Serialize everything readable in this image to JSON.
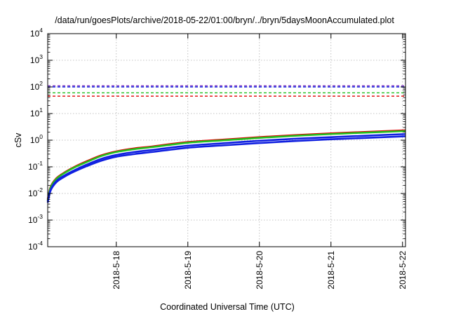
{
  "chart_data": {
    "type": "line",
    "title": "/data/run/goesPlots/archive/2018-05-22/01:00/bryn/../bryn/5daysMoonAccumulated.plot",
    "xlabel": "Coordinated Universal Time (UTC)",
    "ylabel": "cSv",
    "y_scale": "log",
    "ylim": [
      0.0001,
      10000
    ],
    "y_ticks": [
      {
        "base": "10",
        "exp": "-4",
        "value": 0.0001
      },
      {
        "base": "10",
        "exp": "-3",
        "value": 0.001
      },
      {
        "base": "10",
        "exp": "-2",
        "value": 0.01
      },
      {
        "base": "10",
        "exp": "-1",
        "value": 0.1
      },
      {
        "base": "10",
        "exp": "0",
        "value": 1
      },
      {
        "base": "10",
        "exp": "1",
        "value": 10
      },
      {
        "base": "10",
        "exp": "2",
        "value": 100
      },
      {
        "base": "10",
        "exp": "3",
        "value": 1000
      },
      {
        "base": "10",
        "exp": "4",
        "value": 10000
      }
    ],
    "xlim": [
      "2018-05-17T01:00",
      "2018-05-22T01:00"
    ],
    "x_ticks": [
      {
        "label": "2018-5-18",
        "value": "2018-05-18T00:00"
      },
      {
        "label": "2018-5-19",
        "value": "2018-05-19T00:00"
      },
      {
        "label": "2018-5-20",
        "value": "2018-05-20T00:00"
      },
      {
        "label": "2018-5-21",
        "value": "2018-05-21T00:00"
      },
      {
        "label": "2018-5-22",
        "value": "2018-05-22T00:00"
      }
    ],
    "grid": true,
    "reference_lines": [
      {
        "color": "#7b2fbe",
        "y": 110
      },
      {
        "color": "#1020e0",
        "y": 100
      },
      {
        "color": "#20c020",
        "y": 60
      },
      {
        "color": "#e00000",
        "y": 45
      }
    ],
    "series": [
      {
        "color": "#e00000",
        "x": [
          "2018-05-17T01:00",
          "2018-05-17T02:00",
          "2018-05-17T04:00",
          "2018-05-17T07:00",
          "2018-05-17T10:00",
          "2018-05-17T14:00",
          "2018-05-17T19:00",
          "2018-05-18T00:00",
          "2018-05-18T06:00",
          "2018-05-18T12:00",
          "2018-05-19T00:00",
          "2018-05-19T12:00",
          "2018-05-20T00:00",
          "2018-05-20T12:00",
          "2018-05-21T00:00",
          "2018-05-21T12:00",
          "2018-05-22T01:00"
        ],
        "y": [
          0.006,
          0.018,
          0.038,
          0.065,
          0.1,
          0.16,
          0.27,
          0.38,
          0.49,
          0.58,
          0.85,
          1.05,
          1.3,
          1.55,
          1.8,
          2.05,
          2.35
        ]
      },
      {
        "color": "#20c020",
        "x": [
          "2018-05-17T01:00",
          "2018-05-17T02:00",
          "2018-05-17T04:00",
          "2018-05-17T07:00",
          "2018-05-17T10:00",
          "2018-05-17T14:00",
          "2018-05-17T19:00",
          "2018-05-18T00:00",
          "2018-05-18T06:00",
          "2018-05-18T12:00",
          "2018-05-19T00:00",
          "2018-05-19T12:00",
          "2018-05-20T00:00",
          "2018-05-20T12:00",
          "2018-05-21T00:00",
          "2018-05-21T12:00",
          "2018-05-22T01:00"
        ],
        "y": [
          0.0055,
          0.017,
          0.036,
          0.062,
          0.095,
          0.15,
          0.255,
          0.36,
          0.46,
          0.55,
          0.8,
          0.99,
          1.22,
          1.46,
          1.7,
          1.93,
          2.2
        ]
      },
      {
        "color": "#1020e0",
        "x": [
          "2018-05-17T01:00",
          "2018-05-17T02:00",
          "2018-05-17T04:00",
          "2018-05-17T07:00",
          "2018-05-17T10:00",
          "2018-05-17T14:00",
          "2018-05-17T19:00",
          "2018-05-18T00:00",
          "2018-05-18T06:00",
          "2018-05-18T12:00",
          "2018-05-19T00:00",
          "2018-05-19T12:00",
          "2018-05-20T00:00",
          "2018-05-20T12:00",
          "2018-05-21T00:00",
          "2018-05-21T12:00",
          "2018-05-22T01:00"
        ],
        "y": [
          0.005,
          0.014,
          0.03,
          0.05,
          0.075,
          0.12,
          0.2,
          0.28,
          0.36,
          0.43,
          0.62,
          0.77,
          0.95,
          1.13,
          1.3,
          1.48,
          1.7
        ]
      },
      {
        "color": "#1020e0",
        "x": [
          "2018-05-17T01:00",
          "2018-05-17T02:00",
          "2018-05-17T04:00",
          "2018-05-17T07:00",
          "2018-05-17T10:00",
          "2018-05-17T14:00",
          "2018-05-17T19:00",
          "2018-05-18T00:00",
          "2018-05-18T06:00",
          "2018-05-18T12:00",
          "2018-05-19T00:00",
          "2018-05-19T12:00",
          "2018-05-20T00:00",
          "2018-05-20T12:00",
          "2018-05-21T00:00",
          "2018-05-21T12:00",
          "2018-05-22T01:00"
        ],
        "y": [
          0.0045,
          0.013,
          0.027,
          0.045,
          0.067,
          0.105,
          0.17,
          0.24,
          0.3,
          0.36,
          0.52,
          0.64,
          0.78,
          0.93,
          1.08,
          1.22,
          1.4
        ]
      }
    ]
  }
}
